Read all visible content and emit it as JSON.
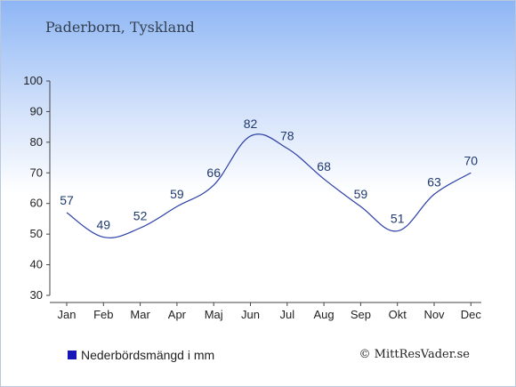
{
  "header": {
    "title": "Paderborn, Tyskland"
  },
  "legend": {
    "label": "Nederbördsmängd i mm"
  },
  "footer": {
    "copyright": "© MittResVader.se"
  },
  "colors": {
    "line": "#2b3fa6",
    "legend_swatch": "#1616b8",
    "axis": "#444444"
  },
  "chart_data": {
    "type": "line",
    "categories": [
      "Jan",
      "Feb",
      "Mar",
      "Apr",
      "Maj",
      "Jun",
      "Jul",
      "Aug",
      "Sep",
      "Okt",
      "Nov",
      "Dec"
    ],
    "series": [
      {
        "name": "Nederbördsmängd i mm",
        "values": [
          57,
          49,
          52,
          59,
          66,
          82,
          78,
          68,
          59,
          51,
          63,
          70
        ]
      }
    ],
    "ylim": [
      30,
      100
    ],
    "yticks": [
      30,
      40,
      50,
      60,
      70,
      80,
      90,
      100
    ],
    "grid": false,
    "legend_position": "bottom-left"
  }
}
